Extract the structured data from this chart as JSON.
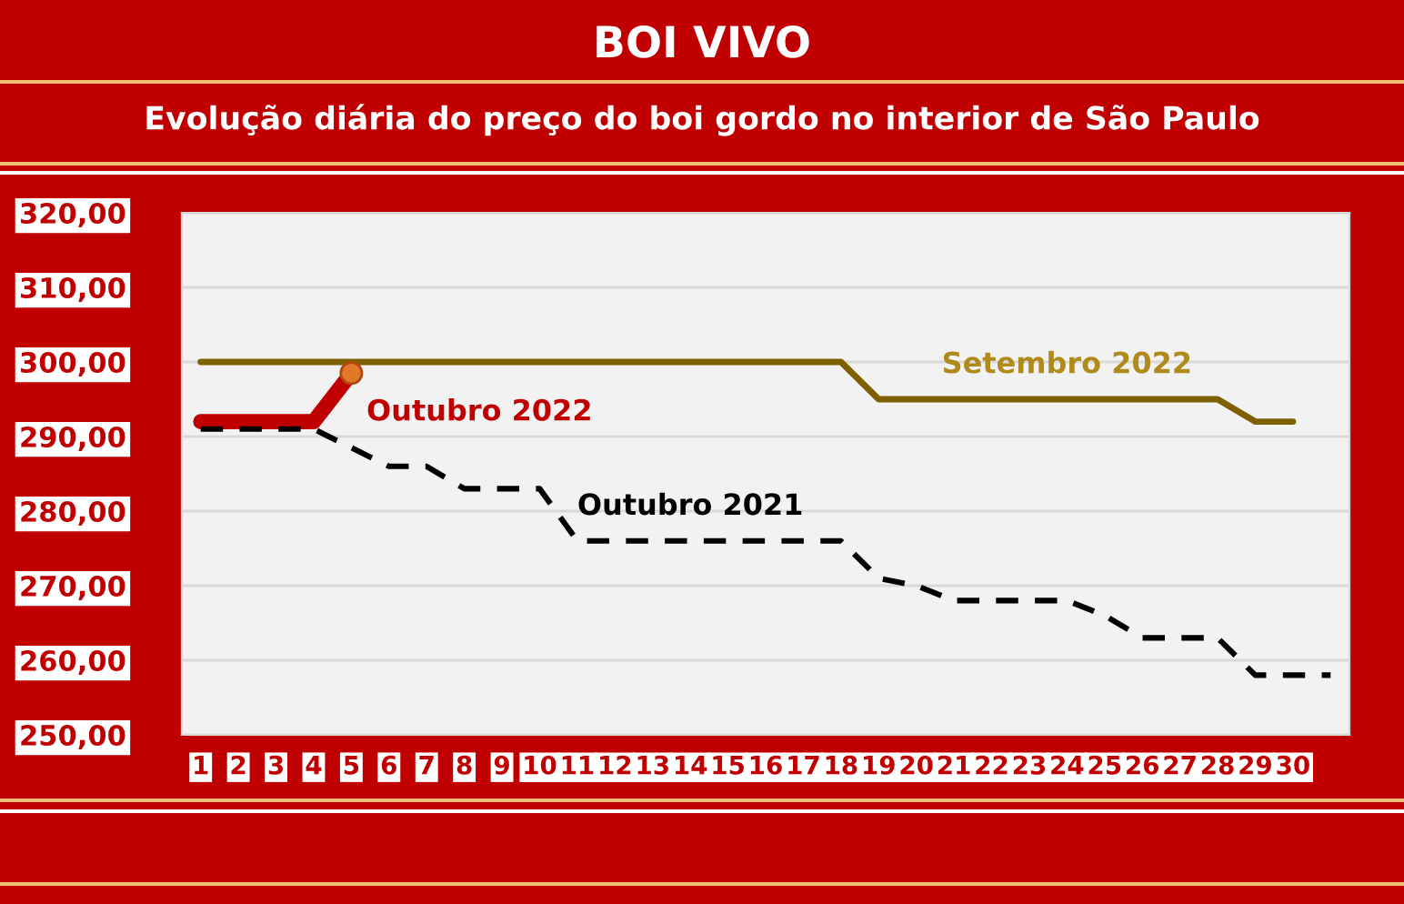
{
  "chart_data": {
    "type": "line",
    "title": "BOI VIVO",
    "subtitle": "Evolução diária do preço do boi gordo no interior de São Paulo",
    "categories": [
      "1",
      "2",
      "3",
      "4",
      "5",
      "6",
      "7",
      "8",
      "9",
      "10",
      "11",
      "12",
      "13",
      "14",
      "15",
      "16",
      "17",
      "18",
      "19",
      "20",
      "21",
      "22",
      "23",
      "24",
      "25",
      "26",
      "27",
      "28",
      "29",
      "30",
      null
    ],
    "series": [
      {
        "name": "Outubro 2022",
        "color": "#c00000",
        "values": [
          292,
          292,
          292,
          292,
          298.5,
          null,
          null,
          null,
          null,
          null,
          null,
          null,
          null,
          null,
          null,
          null,
          null,
          null,
          null,
          null,
          null,
          null,
          null,
          null,
          null,
          null,
          null,
          null,
          null,
          null,
          null
        ]
      },
      {
        "name": "Setembro 2022",
        "color": "#7f6000",
        "values": [
          300,
          300,
          300,
          300,
          300,
          300,
          300,
          300,
          300,
          300,
          300,
          300,
          300,
          300,
          300,
          300,
          300,
          300,
          295,
          295,
          295,
          295,
          295,
          295,
          295,
          295,
          295,
          295,
          292,
          292,
          null
        ]
      },
      {
        "name": "Outubro 2021",
        "color": "#000000",
        "line_style": "dashed",
        "values": [
          291,
          291,
          291,
          291,
          288.5,
          286,
          286,
          283,
          283,
          283,
          276,
          276,
          276,
          276,
          276,
          276,
          276,
          276,
          271,
          270,
          268,
          268,
          268,
          268,
          266,
          263,
          263,
          263,
          258,
          258,
          258
        ]
      }
    ],
    "ylim": [
      250,
      320
    ],
    "yticks": [
      {
        "value": 250,
        "label": "250,00"
      },
      {
        "value": 260,
        "label": "260,00"
      },
      {
        "value": 270,
        "label": "270,00"
      },
      {
        "value": 280,
        "label": "280,00"
      },
      {
        "value": 290,
        "label": "290,00"
      },
      {
        "value": 300,
        "label": "300,00"
      },
      {
        "value": 310,
        "label": "310,00"
      },
      {
        "value": 320,
        "label": "320,00"
      }
    ],
    "grid": "y"
  }
}
